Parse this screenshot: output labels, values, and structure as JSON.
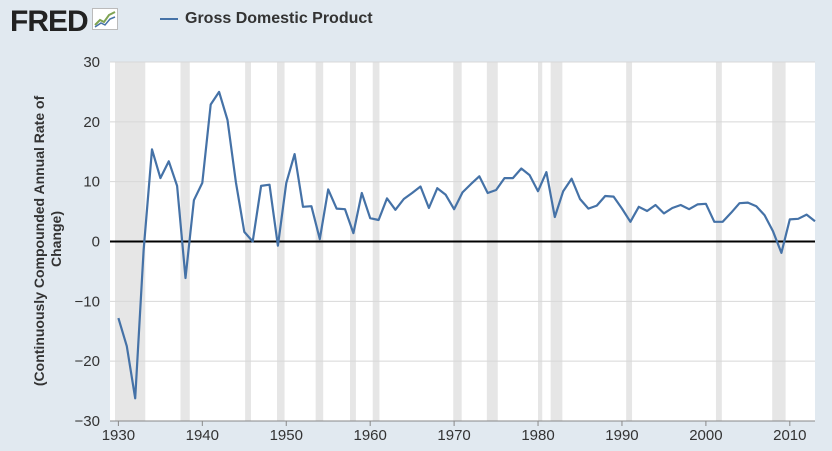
{
  "logo": {
    "text": "FRED",
    "icon": "line-chart-icon"
  },
  "legend": {
    "label": "Gross Domestic Product",
    "color": "#4572a7"
  },
  "chart_data": {
    "type": "line",
    "title": "",
    "xlabel": "",
    "ylabel_lines": [
      "(Continuously Compounded Annual Rate of",
      "Change)"
    ],
    "ylim": [
      -30,
      30
    ],
    "xlim": [
      1929,
      2013
    ],
    "yticks": [
      30,
      20,
      10,
      0,
      -10,
      -20,
      -30
    ],
    "xticks": [
      1930,
      1940,
      1950,
      1960,
      1970,
      1980,
      1990,
      2000,
      2010
    ],
    "grid": "horizontal",
    "recession_shading_color": "#e6e6e6",
    "recessions": [
      [
        1929.6,
        1933.2
      ],
      [
        1937.4,
        1938.5
      ],
      [
        1945.1,
        1945.8
      ],
      [
        1948.9,
        1949.8
      ],
      [
        1953.5,
        1954.4
      ],
      [
        1957.6,
        1958.3
      ],
      [
        1960.3,
        1961.1
      ],
      [
        1969.9,
        1970.9
      ],
      [
        1973.9,
        1975.2
      ],
      [
        1980.0,
        1980.5
      ],
      [
        1981.5,
        1982.9
      ],
      [
        1990.5,
        1991.2
      ],
      [
        2001.2,
        2001.9
      ],
      [
        2007.9,
        2009.5
      ]
    ],
    "series": [
      {
        "name": "Gross Domestic Product",
        "color": "#4572a7",
        "x": [
          1930,
          1931,
          1932,
          1933,
          1934,
          1935,
          1936,
          1937,
          1938,
          1939,
          1940,
          1941,
          1942,
          1943,
          1944,
          1945,
          1946,
          1947,
          1948,
          1949,
          1950,
          1951,
          1952,
          1953,
          1954,
          1955,
          1956,
          1957,
          1958,
          1959,
          1960,
          1961,
          1962,
          1963,
          1964,
          1965,
          1966,
          1967,
          1968,
          1969,
          1970,
          1971,
          1972,
          1973,
          1974,
          1975,
          1976,
          1977,
          1978,
          1979,
          1980,
          1981,
          1982,
          1983,
          1984,
          1985,
          1986,
          1987,
          1988,
          1989,
          1990,
          1991,
          1992,
          1993,
          1994,
          1995,
          1996,
          1997,
          1998,
          1999,
          2000,
          2001,
          2002,
          2003,
          2004,
          2005,
          2006,
          2007,
          2008,
          2009,
          2010,
          2011,
          2012,
          2013
        ],
        "values": [
          -12.8,
          -17.5,
          -26.2,
          -1.5,
          15.4,
          10.6,
          13.4,
          9.3,
          -6.1,
          6.9,
          9.8,
          22.9,
          25.0,
          20.3,
          9.9,
          1.6,
          0,
          9.3,
          9.5,
          -0.7,
          9.8,
          14.6,
          5.8,
          5.9,
          0.4,
          8.7,
          5.5,
          5.4,
          1.4,
          8.1,
          3.9,
          3.6,
          7.2,
          5.3,
          7.1,
          8.1,
          9.2,
          5.6,
          8.9,
          7.8,
          5.4,
          8.2,
          9.6,
          10.9,
          8.1,
          8.6,
          10.6,
          10.6,
          12.2,
          11.1,
          8.4,
          11.6,
          4.1,
          8.4,
          10.5,
          7.1,
          5.5,
          6.0,
          7.6,
          7.5,
          5.5,
          3.3,
          5.8,
          5.1,
          6.1,
          4.7,
          5.6,
          6.1,
          5.4,
          6.2,
          6.3,
          3.3,
          3.3,
          4.8,
          6.4,
          6.5,
          5.9,
          4.4,
          1.7,
          -1.9,
          3.7,
          3.8,
          4.5,
          3.4
        ]
      }
    ]
  }
}
